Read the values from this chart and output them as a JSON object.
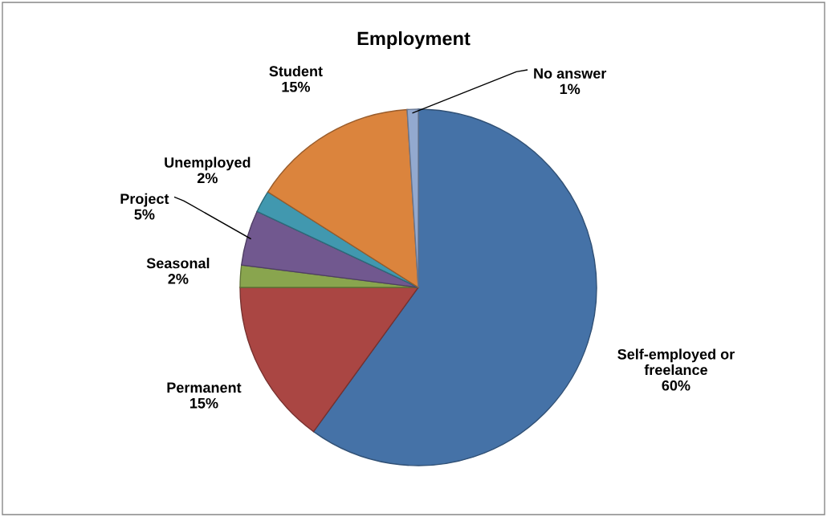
{
  "chart_data": {
    "type": "pie",
    "title": "Employment",
    "categories": [
      "Self-employed or\nfreelance",
      "Permanent",
      "Seasonal",
      "Project",
      "Unemployed",
      "Student",
      "No answer"
    ],
    "values": [
      60,
      15,
      2,
      5,
      2,
      15,
      1
    ],
    "value_labels": [
      "60%",
      "15%",
      "2%",
      "5%",
      "2%",
      "15%",
      "1%"
    ],
    "colors": [
      "#4572a7",
      "#aa4643",
      "#89a54e",
      "#71588f",
      "#4198af",
      "#db843d",
      "#93a9cf"
    ],
    "legend": false
  }
}
